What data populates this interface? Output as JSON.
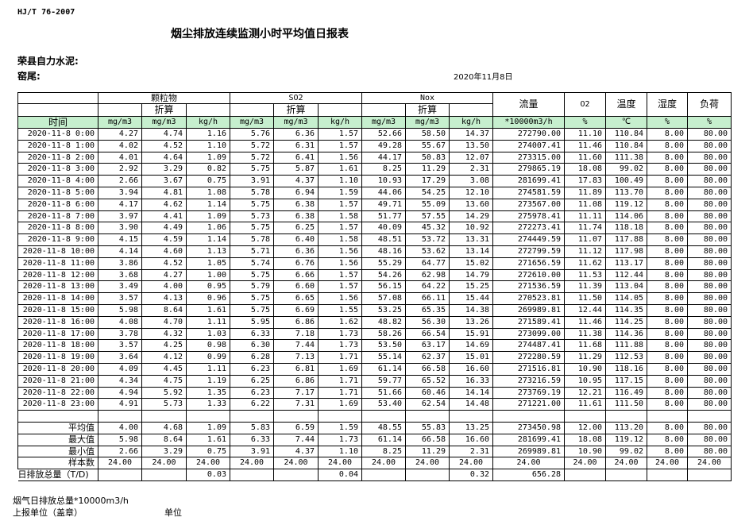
{
  "header": {
    "standard": "HJ/T  76-2007",
    "title": "烟尘排放连续监测小时平均值日报表",
    "company": "荣县自力水泥:",
    "kiln": "窑尾:",
    "date": "2020年11月8日"
  },
  "columns": {
    "pm": "颗粒物",
    "so2": "SO2",
    "nox": "Nox",
    "converted": "折算",
    "flow": "流量",
    "o2": "O2",
    "temp": "温度",
    "humidity": "湿度",
    "load": "负荷",
    "time": "时间"
  },
  "units": [
    "mg/m3",
    "mg/m3",
    "kg/h",
    "mg/m3",
    "mg/m3",
    "kg/h",
    "mg/m3",
    "mg/m3",
    "kg/h",
    "*10000m3/h",
    "%",
    "℃",
    "%",
    "%"
  ],
  "rows": [
    [
      "2020-11-8 0:00",
      "4.27",
      "4.74",
      "1.16",
      "5.76",
      "6.36",
      "1.57",
      "52.66",
      "58.50",
      "14.37",
      "272790.00",
      "11.10",
      "110.84",
      "8.00",
      "80.00"
    ],
    [
      "2020-11-8 1:00",
      "4.02",
      "4.52",
      "1.10",
      "5.72",
      "6.31",
      "1.57",
      "49.28",
      "55.67",
      "13.50",
      "274007.41",
      "11.46",
      "110.84",
      "8.00",
      "80.00"
    ],
    [
      "2020-11-8 2:00",
      "4.01",
      "4.64",
      "1.09",
      "5.72",
      "6.41",
      "1.56",
      "44.17",
      "50.83",
      "12.07",
      "273315.00",
      "11.60",
      "111.38",
      "8.00",
      "80.00"
    ],
    [
      "2020-11-8 3:00",
      "2.92",
      "3.29",
      "0.82",
      "5.75",
      "5.87",
      "1.61",
      "8.25",
      "11.29",
      "2.31",
      "279865.19",
      "18.08",
      "99.02",
      "8.00",
      "80.00"
    ],
    [
      "2020-11-8 4:00",
      "2.66",
      "3.67",
      "0.75",
      "3.91",
      "4.37",
      "1.10",
      "10.93",
      "17.29",
      "3.08",
      "281699.41",
      "17.83",
      "100.49",
      "8.00",
      "80.00"
    ],
    [
      "2020-11-8 5:00",
      "3.94",
      "4.81",
      "1.08",
      "5.78",
      "6.94",
      "1.59",
      "44.06",
      "54.25",
      "12.10",
      "274581.59",
      "11.89",
      "113.70",
      "8.00",
      "80.00"
    ],
    [
      "2020-11-8 6:00",
      "4.17",
      "4.62",
      "1.14",
      "5.75",
      "6.38",
      "1.57",
      "49.71",
      "55.09",
      "13.60",
      "273567.00",
      "11.08",
      "119.12",
      "8.00",
      "80.00"
    ],
    [
      "2020-11-8 7:00",
      "3.97",
      "4.41",
      "1.09",
      "5.73",
      "6.38",
      "1.58",
      "51.77",
      "57.55",
      "14.29",
      "275978.41",
      "11.11",
      "114.06",
      "8.00",
      "80.00"
    ],
    [
      "2020-11-8 8:00",
      "3.90",
      "4.49",
      "1.06",
      "5.75",
      "6.25",
      "1.57",
      "40.09",
      "45.32",
      "10.92",
      "272273.41",
      "11.74",
      "118.18",
      "8.00",
      "80.00"
    ],
    [
      "2020-11-8 9:00",
      "4.15",
      "4.59",
      "1.14",
      "5.78",
      "6.40",
      "1.58",
      "48.51",
      "53.72",
      "13.31",
      "274449.59",
      "11.07",
      "117.88",
      "8.00",
      "80.00"
    ],
    [
      "2020-11-8 10:00",
      "4.14",
      "4.60",
      "1.13",
      "5.71",
      "6.36",
      "1.56",
      "48.16",
      "53.62",
      "13.14",
      "272799.59",
      "11.12",
      "117.98",
      "8.00",
      "80.00"
    ],
    [
      "2020-11-8 11:00",
      "3.86",
      "4.52",
      "1.05",
      "5.74",
      "6.76",
      "1.56",
      "55.29",
      "64.77",
      "15.02",
      "271656.59",
      "11.62",
      "113.17",
      "8.00",
      "80.00"
    ],
    [
      "2020-11-8 12:00",
      "3.68",
      "4.27",
      "1.00",
      "5.75",
      "6.66",
      "1.57",
      "54.26",
      "62.98",
      "14.79",
      "272610.00",
      "11.53",
      "112.44",
      "8.00",
      "80.00"
    ],
    [
      "2020-11-8 13:00",
      "3.49",
      "4.00",
      "0.95",
      "5.79",
      "6.60",
      "1.57",
      "56.15",
      "64.22",
      "15.25",
      "271536.59",
      "11.39",
      "113.04",
      "8.00",
      "80.00"
    ],
    [
      "2020-11-8 14:00",
      "3.57",
      "4.13",
      "0.96",
      "5.75",
      "6.65",
      "1.56",
      "57.08",
      "66.11",
      "15.44",
      "270523.81",
      "11.50",
      "114.05",
      "8.00",
      "80.00"
    ],
    [
      "2020-11-8 15:00",
      "5.98",
      "8.64",
      "1.61",
      "5.75",
      "6.69",
      "1.55",
      "53.25",
      "65.35",
      "14.38",
      "269989.81",
      "12.44",
      "114.35",
      "8.00",
      "80.00"
    ],
    [
      "2020-11-8 16:00",
      "4.08",
      "4.70",
      "1.11",
      "5.95",
      "6.86",
      "1.62",
      "48.82",
      "56.30",
      "13.26",
      "271589.41",
      "11.46",
      "114.25",
      "8.00",
      "80.00"
    ],
    [
      "2020-11-8 17:00",
      "3.78",
      "4.32",
      "1.03",
      "6.33",
      "7.18",
      "1.73",
      "58.26",
      "66.54",
      "15.91",
      "273099.00",
      "11.38",
      "114.36",
      "8.00",
      "80.00"
    ],
    [
      "2020-11-8 18:00",
      "3.57",
      "4.25",
      "0.98",
      "6.30",
      "7.44",
      "1.73",
      "53.50",
      "63.17",
      "14.69",
      "274487.41",
      "11.68",
      "111.88",
      "8.00",
      "80.00"
    ],
    [
      "2020-11-8 19:00",
      "3.64",
      "4.12",
      "0.99",
      "6.28",
      "7.13",
      "1.71",
      "55.14",
      "62.37",
      "15.01",
      "272280.59",
      "11.29",
      "112.53",
      "8.00",
      "80.00"
    ],
    [
      "2020-11-8 20:00",
      "4.09",
      "4.45",
      "1.11",
      "6.23",
      "6.81",
      "1.69",
      "61.14",
      "66.58",
      "16.60",
      "271516.81",
      "10.90",
      "118.16",
      "8.00",
      "80.00"
    ],
    [
      "2020-11-8 21:00",
      "4.34",
      "4.75",
      "1.19",
      "6.25",
      "6.86",
      "1.71",
      "59.77",
      "65.52",
      "16.33",
      "273216.59",
      "10.95",
      "117.15",
      "8.00",
      "80.00"
    ],
    [
      "2020-11-8 22:00",
      "4.94",
      "5.92",
      "1.35",
      "6.23",
      "7.17",
      "1.71",
      "51.66",
      "60.46",
      "14.14",
      "273769.19",
      "12.21",
      "116.49",
      "8.00",
      "80.00"
    ],
    [
      "2020-11-8 23:00",
      "4.91",
      "5.73",
      "1.33",
      "6.22",
      "7.31",
      "1.69",
      "53.40",
      "62.54",
      "14.48",
      "271221.00",
      "11.61",
      "111.50",
      "8.00",
      "80.00"
    ]
  ],
  "summary": [
    [
      "平均值",
      "4.00",
      "4.68",
      "1.09",
      "5.83",
      "6.59",
      "1.59",
      "48.55",
      "55.83",
      "13.25",
      "273450.98",
      "12.00",
      "113.20",
      "8.00",
      "80.00"
    ],
    [
      "最大值",
      "5.98",
      "8.64",
      "1.61",
      "6.33",
      "7.44",
      "1.73",
      "61.14",
      "66.58",
      "16.60",
      "281699.41",
      "18.08",
      "119.12",
      "8.00",
      "80.00"
    ],
    [
      "最小值",
      "2.66",
      "3.29",
      "0.75",
      "3.91",
      "4.37",
      "1.10",
      "8.25",
      "11.29",
      "2.31",
      "269989.81",
      "10.90",
      "99.02",
      "8.00",
      "80.00"
    ],
    [
      "样本数",
      "24.00",
      "24.00",
      "24.00",
      "24.00",
      "24.00",
      "24.00",
      "24.00",
      "24.00",
      "24.00",
      "24.00",
      "24.00",
      "24.00",
      "24.00",
      "24.00"
    ],
    [
      "日排放总量（T/D)",
      "",
      "",
      "0.03",
      "",
      "",
      "0.04",
      "",
      "",
      "0.32",
      "656.28",
      "",
      "",
      "",
      ""
    ]
  ],
  "footer": {
    "flue_total": "烟气日排放总量*10000m3/h",
    "reporting_unit": "上报单位（盖章）",
    "unit": "单位"
  }
}
